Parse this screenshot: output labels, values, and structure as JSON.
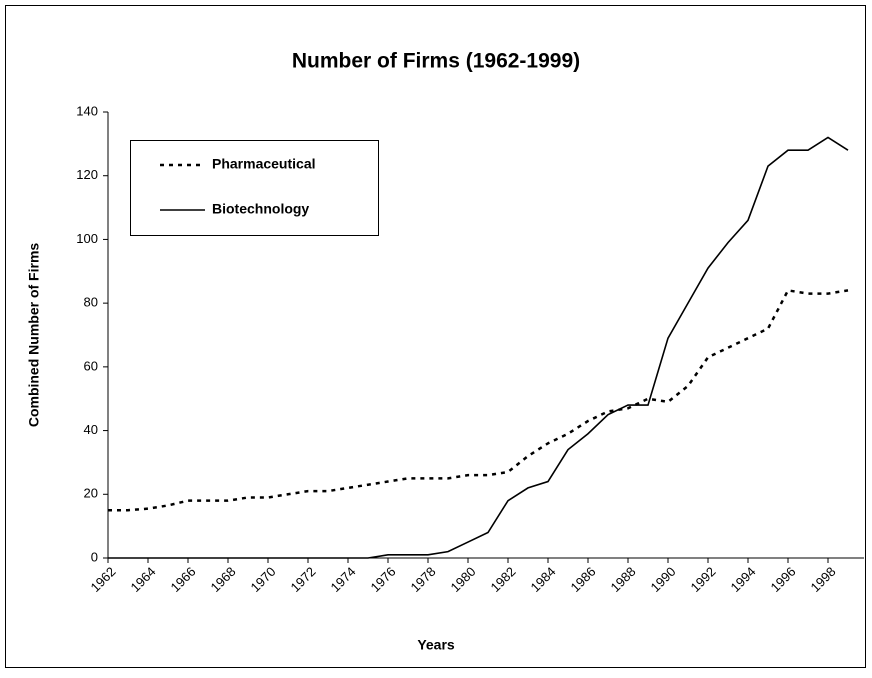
{
  "chart_data": {
    "type": "line",
    "title": "Number of Firms (1962-1999)",
    "xlabel": "Years",
    "ylabel": "Combined Number of Firms",
    "x": [
      1962,
      1963,
      1964,
      1965,
      1966,
      1967,
      1968,
      1969,
      1970,
      1971,
      1972,
      1973,
      1974,
      1975,
      1976,
      1977,
      1978,
      1979,
      1980,
      1981,
      1982,
      1983,
      1984,
      1985,
      1986,
      1987,
      1988,
      1989,
      1990,
      1991,
      1992,
      1993,
      1994,
      1995,
      1996,
      1997,
      1998,
      1999
    ],
    "series": [
      {
        "name": "Pharmaceutical",
        "color": "#000000",
        "dash": true,
        "values": [
          15,
          15,
          15.5,
          16.5,
          18,
          18,
          18,
          19,
          19,
          20,
          21,
          21,
          22,
          23,
          24,
          25,
          25,
          25,
          26,
          26,
          27,
          32,
          36,
          39,
          43,
          46,
          47,
          50,
          49,
          54,
          63,
          66,
          69,
          72,
          84,
          83,
          83,
          84
        ]
      },
      {
        "name": "Biotechnology",
        "color": "#000000",
        "dash": false,
        "values": [
          0,
          0,
          0,
          0,
          0,
          0,
          0,
          0,
          0,
          0,
          0,
          0,
          0,
          0,
          1,
          1,
          1,
          2,
          5,
          8,
          18,
          22,
          24,
          34,
          39,
          45,
          48,
          48,
          69,
          80,
          91,
          99,
          106,
          123,
          128,
          128,
          132,
          128
        ]
      }
    ],
    "xlim": [
      1962,
      2000
    ],
    "xticks": [
      1962,
      1964,
      1966,
      1968,
      1970,
      1972,
      1974,
      1976,
      1978,
      1980,
      1982,
      1984,
      1986,
      1988,
      1990,
      1992,
      1994,
      1996,
      1998
    ],
    "ylim": [
      0,
      140
    ],
    "yticks": [
      0,
      20,
      40,
      60,
      80,
      100,
      120,
      140
    ],
    "grid": false,
    "legend": "upper left"
  }
}
